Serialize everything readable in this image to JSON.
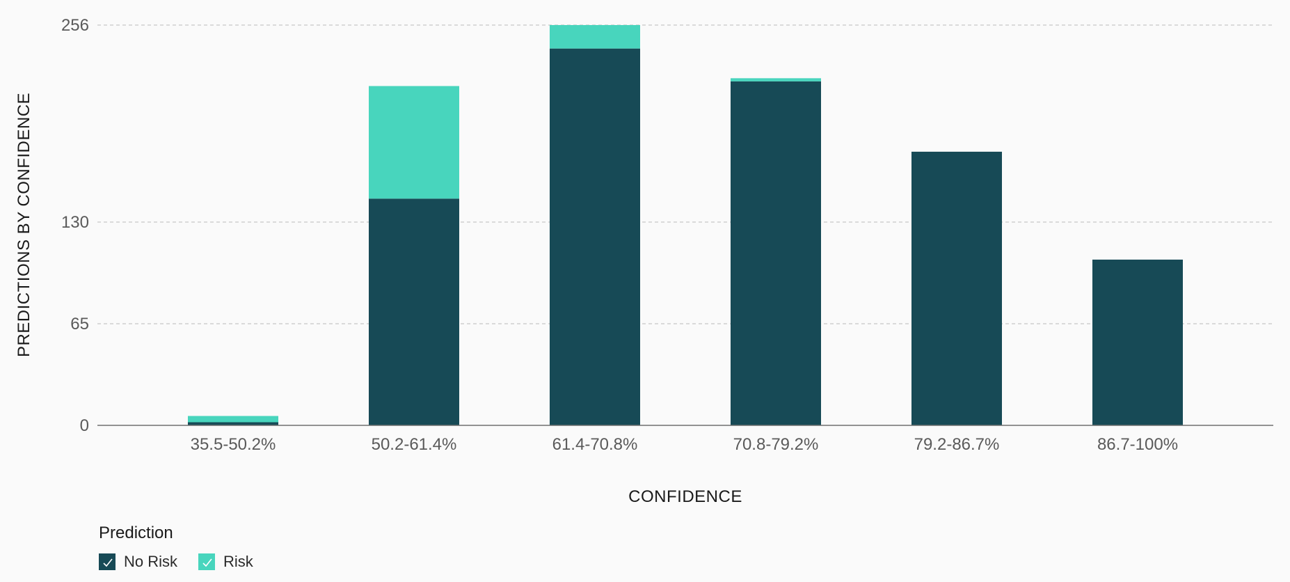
{
  "chart_data": {
    "type": "bar",
    "stacked": true,
    "title": "",
    "xlabel": "CONFIDENCE",
    "ylabel": "PREDICTIONS BY CONFIDENCE",
    "categories": [
      "35.5-50.2%",
      "50.2-61.4%",
      "61.4-70.8%",
      "70.8-79.2%",
      "79.2-86.7%",
      "86.7-100%"
    ],
    "series": [
      {
        "name": "No Risk",
        "color": "#174a56",
        "values": [
          2,
          145,
          241,
          220,
          175,
          106
        ]
      },
      {
        "name": "Risk",
        "color": "#48d5bd",
        "values": [
          4,
          72,
          15,
          2,
          0,
          0
        ]
      }
    ],
    "ylim": [
      0,
      256
    ],
    "yticks": [
      {
        "value": 0,
        "label": "0"
      },
      {
        "value": 65,
        "label": "65"
      },
      {
        "value": 130,
        "label": "130"
      },
      {
        "value": 256,
        "label": "256"
      }
    ],
    "grid": true,
    "legend": {
      "title": "Prediction",
      "placement": "bottom-left"
    }
  }
}
